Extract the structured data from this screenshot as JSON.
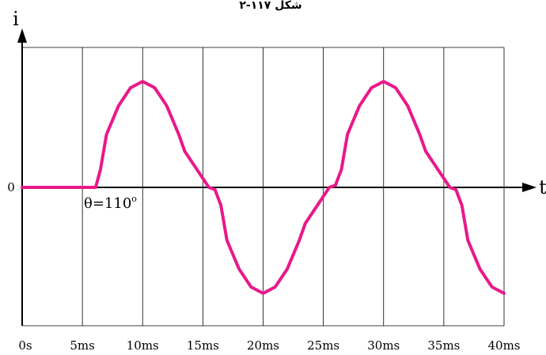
{
  "caption": "شکل ۱۱۷-۲",
  "chart_data": {
    "type": "line",
    "title": "",
    "xlabel": "t",
    "ylabel": "i",
    "x_tick_labels": [
      "0s",
      "5ms",
      "10ms",
      "15ms",
      "20ms",
      "25ms",
      "30ms",
      "35ms",
      "40ms"
    ],
    "x_ticks_ms": [
      0,
      5,
      10,
      15,
      20,
      25,
      30,
      35,
      40
    ],
    "y_tick_labels": [
      "0"
    ],
    "xlim_ms": [
      0,
      40
    ],
    "ylim": [
      -1.3,
      1.3
    ],
    "grid": true,
    "annotation": {
      "text": "θ=110",
      "superscript": "o"
    },
    "colors": {
      "series": "#e8198a",
      "grid": "#000000"
    },
    "series": [
      {
        "x_ms": [
          0,
          6.1,
          6.5,
          7,
          8,
          9,
          10,
          11,
          12,
          13,
          13.5,
          15.5,
          16,
          16.5,
          17,
          18,
          19,
          20,
          21,
          22,
          23,
          23.5,
          25.5,
          26,
          26.5,
          27,
          28,
          29,
          30,
          31,
          32,
          33,
          33.5,
          35.5,
          36,
          36.5,
          37,
          38,
          39,
          40
        ],
        "values": [
          0,
          0,
          0.17,
          0.5,
          0.77,
          0.94,
          1.0,
          0.94,
          0.77,
          0.5,
          0.34,
          0,
          -0.02,
          -0.17,
          -0.5,
          -0.77,
          -0.94,
          -1.0,
          -0.94,
          -0.77,
          -0.5,
          -0.34,
          0,
          0.02,
          0.17,
          0.5,
          0.77,
          0.94,
          1.0,
          0.94,
          0.77,
          0.5,
          0.34,
          0,
          -0.02,
          -0.17,
          -0.5,
          -0.77,
          -0.94,
          -1.0
        ]
      }
    ]
  }
}
